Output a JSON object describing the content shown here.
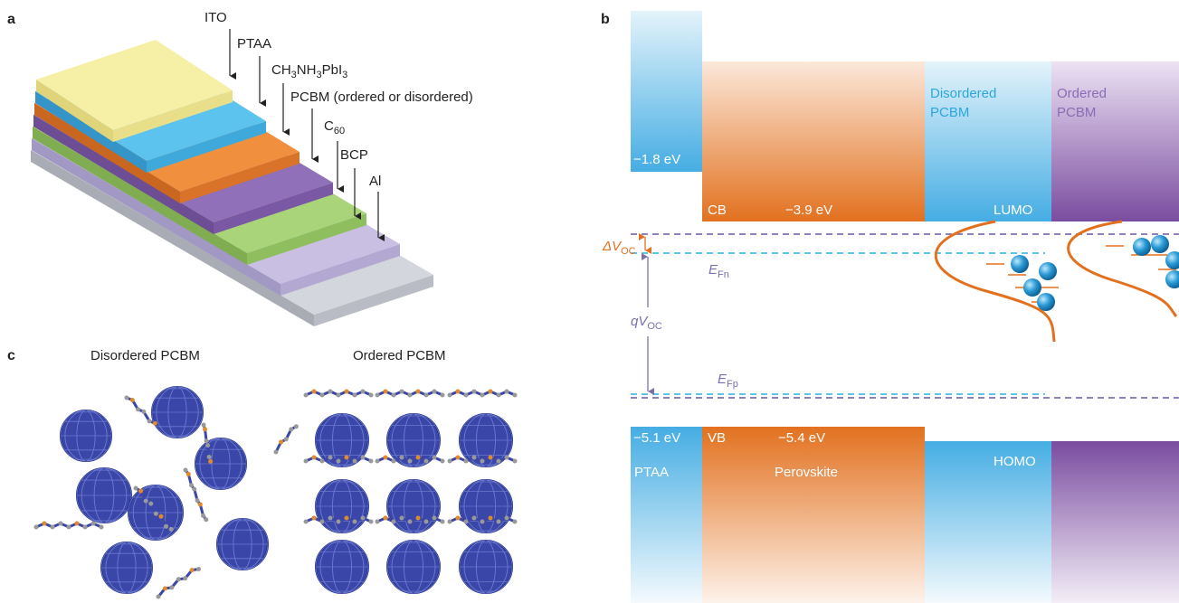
{
  "panel_a": {
    "label": "a",
    "layers": [
      [
        "ITO"
      ],
      [
        "PTAA"
      ],
      [
        "CH",
        "3",
        "NH",
        "3",
        "PbI",
        "3"
      ],
      [
        "PCBM (ordered or disordered)"
      ],
      [
        "C",
        "60"
      ],
      [
        "BCP"
      ],
      [
        "Al"
      ]
    ]
  },
  "panel_b": {
    "label": "b",
    "ptaa_lumo": "−1.8 eV",
    "cb": "CB",
    "cb_energy": "−3.9 eV",
    "disordered": [
      "Disordered",
      "PCBM"
    ],
    "ordered": [
      "Ordered",
      "PCBM"
    ],
    "lumo": "LUMO",
    "delta_voc": [
      "ΔV",
      "OC"
    ],
    "e_fn": [
      "E",
      "Fn"
    ],
    "qvoc": [
      "qV",
      "OC"
    ],
    "e_fp": [
      "E",
      "Fp"
    ],
    "ptaa_homo": "−5.1 eV",
    "vb": "VB",
    "vb_energy": "−5.4 eV",
    "ptaa": "PTAA",
    "perovskite": "Perovskite",
    "homo": "HOMO"
  },
  "panel_c": {
    "label": "c",
    "disordered": "Disordered PCBM",
    "ordered": "Ordered PCBM"
  }
}
